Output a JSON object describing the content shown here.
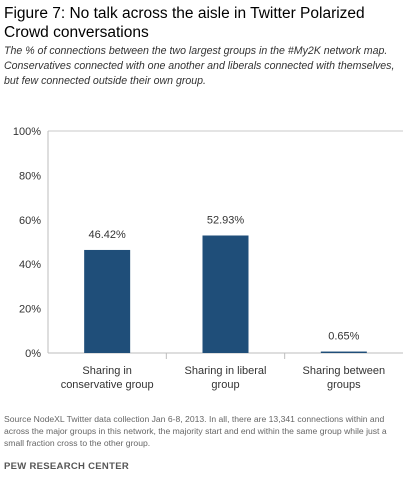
{
  "title": "Figure 7: No talk across the aisle in Twitter Polarized Crowd conversations",
  "subtitle": "The % of connections between the two largest groups in the #My2K network map. Conservatives connected with one another and liberals connected with themselves, but few connected outside their own group.",
  "source": "Source NodeXL Twitter data collection Jan 6-8, 2013. In all, there are 13,341 connections within and across the major groups in this network, the majority start and end within the same group while just a small fraction cross to the other group.",
  "org": "PEW RESEARCH CENTER",
  "chart_data": {
    "type": "bar",
    "categories": [
      [
        "Sharing in",
        "conservative group"
      ],
      [
        "Sharing in liberal",
        "group"
      ],
      [
        "Sharing between",
        "groups"
      ]
    ],
    "values": [
      46.42,
      52.93,
      0.65
    ],
    "value_labels": [
      "46.42%",
      "52.93%",
      "0.65%"
    ],
    "yticks": [
      "0%",
      "20%",
      "40%",
      "60%",
      "80%",
      "100%"
    ],
    "ylim": [
      0,
      100
    ],
    "bar_color": "#1f4e79",
    "grid": false
  }
}
